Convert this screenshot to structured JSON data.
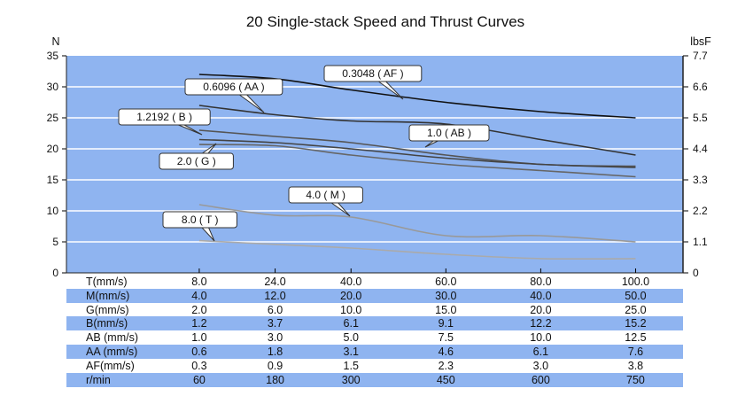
{
  "chart_data": {
    "type": "line",
    "title": "20 Single-stack Speed and Thrust Curves",
    "ylabel_left": "N",
    "ylabel_right": "lbsF",
    "y_left_ticks": [
      "0",
      "5",
      "10",
      "15",
      "20",
      "25",
      "30",
      "35"
    ],
    "y_right_ticks": [
      "0",
      "1.1",
      "2.2",
      "3.3",
      "4.4",
      "5.5",
      "6.6",
      "7.7"
    ],
    "ylim": [
      0,
      35
    ],
    "x_points": [
      8.0,
      24.0,
      40.0,
      60.0,
      80.0,
      100.0
    ],
    "xlim": [
      -20,
      110
    ],
    "series": [
      {
        "name": "0.3048 ( AF )",
        "color": "#111111",
        "points": [
          [
            8,
            32
          ],
          [
            24,
            31.3
          ],
          [
            40,
            29.5
          ],
          [
            60,
            27.5
          ],
          [
            80,
            26
          ],
          [
            100,
            25
          ]
        ]
      },
      {
        "name": "0.6096 ( AA )",
        "color": "#333333",
        "points": [
          [
            8,
            27
          ],
          [
            24,
            25.5
          ],
          [
            40,
            24.5
          ],
          [
            60,
            24
          ],
          [
            80,
            21.5
          ],
          [
            100,
            19
          ]
        ]
      },
      {
        "name": "1.2192 ( B )",
        "color": "#555555",
        "points": [
          [
            8,
            23
          ],
          [
            24,
            22
          ],
          [
            40,
            21
          ],
          [
            60,
            19
          ],
          [
            80,
            17.5
          ],
          [
            100,
            17.2
          ]
        ]
      },
      {
        "name": "1.0 ( AB )",
        "color": "#444444",
        "points": [
          [
            8,
            21.5
          ],
          [
            24,
            21
          ],
          [
            40,
            20
          ],
          [
            60,
            18.5
          ],
          [
            80,
            17.5
          ],
          [
            100,
            17
          ]
        ]
      },
      {
        "name": "2.0 ( G )",
        "color": "#666666",
        "points": [
          [
            8,
            20.7
          ],
          [
            24,
            20.5
          ],
          [
            40,
            19
          ],
          [
            60,
            17.5
          ],
          [
            80,
            16.5
          ],
          [
            100,
            15.5
          ]
        ]
      },
      {
        "name": "4.0 ( M )",
        "color": "#999999",
        "points": [
          [
            8,
            11
          ],
          [
            24,
            9.3
          ],
          [
            40,
            9
          ],
          [
            60,
            6
          ],
          [
            80,
            6
          ],
          [
            100,
            5
          ]
        ]
      },
      {
        "name": "8.0 ( T )",
        "color": "#aaaaaa",
        "points": [
          [
            8,
            5.2
          ],
          [
            24,
            4.6
          ],
          [
            40,
            4
          ],
          [
            60,
            3
          ],
          [
            80,
            2.3
          ],
          [
            100,
            2.3
          ]
        ]
      }
    ],
    "table": {
      "columns": [
        "8.0",
        "24.0",
        "40.0",
        "60.0",
        "80.0",
        "100.0"
      ],
      "rows": [
        {
          "label": "T(mm/s)",
          "values": [
            "8.0",
            "24.0",
            "40.0",
            "60.0",
            "80.0",
            "100.0"
          ]
        },
        {
          "label": "M(mm/s)",
          "values": [
            "4.0",
            "12.0",
            "20.0",
            "30.0",
            "40.0",
            "50.0"
          ]
        },
        {
          "label": "G(mm/s)",
          "values": [
            "2.0",
            "6.0",
            "10.0",
            "15.0",
            "20.0",
            "25.0"
          ]
        },
        {
          "label": "B(mm/s)",
          "values": [
            "1.2",
            "3.7",
            "6.1",
            "9.1",
            "12.2",
            "15.2"
          ]
        },
        {
          "label": "AB (mm/s)",
          "values": [
            "1.0",
            "3.0",
            "5.0",
            "7.5",
            "10.0",
            "12.5"
          ]
        },
        {
          "label": "AA (mm/s)",
          "values": [
            "0.6",
            "1.8",
            "3.1",
            "4.6",
            "6.1",
            "7.6"
          ]
        },
        {
          "label": "AF(mm/s)",
          "values": [
            "0.3",
            "0.9",
            "1.5",
            "2.3",
            "3.0",
            "3.8"
          ]
        },
        {
          "label": "r/min",
          "values": [
            "60",
            "180",
            "300",
            "450",
            "600",
            "750"
          ]
        }
      ]
    }
  }
}
